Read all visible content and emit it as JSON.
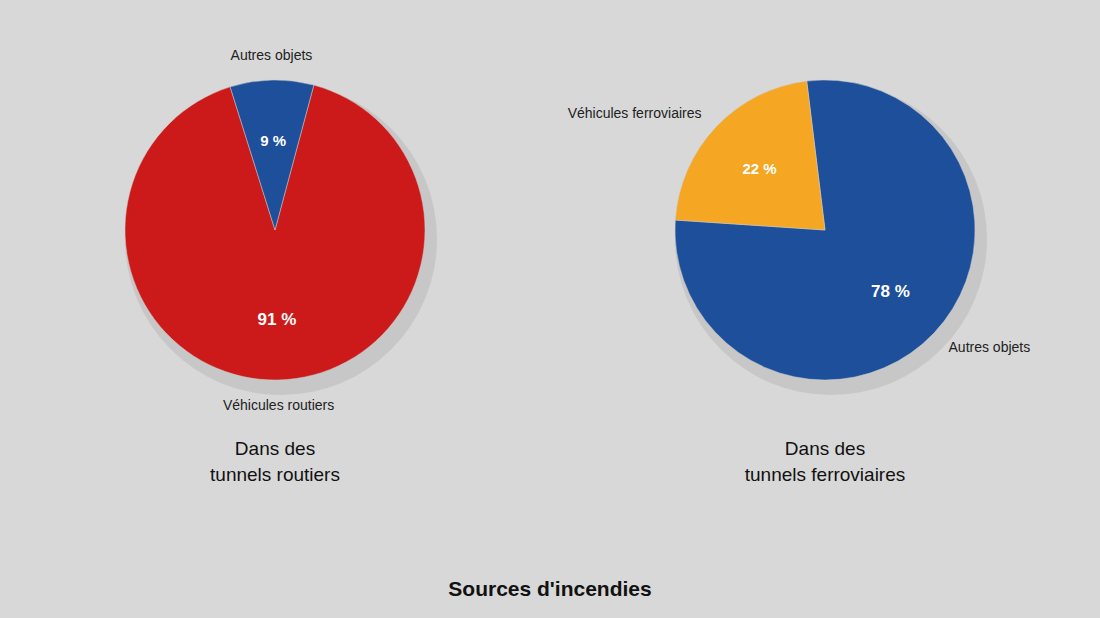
{
  "chart_data": [
    {
      "type": "pie",
      "title": "Sources d'incendies",
      "subtitle": "Dans des\ntunnels routiers",
      "categories": [
        "Véhicules routiers",
        "Autres objets"
      ],
      "values": [
        91,
        9
      ],
      "value_labels": [
        "91 %",
        "9 %"
      ],
      "colors": [
        "#cc1a1a",
        "#1d4f9b"
      ],
      "data_labels": true
    },
    {
      "type": "pie",
      "subtitle": "Dans des\ntunnels ferroviaires",
      "categories": [
        "Autres objets",
        "Véhicules ferroviaires"
      ],
      "values": [
        78,
        22
      ],
      "value_labels": [
        "78 %",
        "22 %"
      ],
      "colors": [
        "#1d4f9b",
        "#f5a623"
      ],
      "data_labels": true
    }
  ]
}
